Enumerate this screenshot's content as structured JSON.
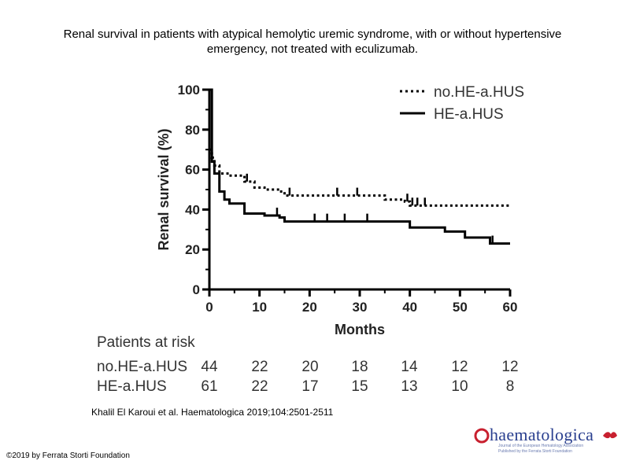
{
  "title_lines": [
    "Renal survival in patients with atypical hemolytic uremic syndrome, with or without hypertensive",
    "emergency, not treated with eculizumab."
  ],
  "chart_data": {
    "type": "line",
    "subtype": "kaplan-meier",
    "xlabel": "Months",
    "ylabel": "Renal survival (%)",
    "xlim": [
      0,
      60
    ],
    "ylim": [
      0,
      100
    ],
    "x_ticks": [
      "0",
      "10",
      "20",
      "30",
      "40",
      "50",
      "60"
    ],
    "y_ticks": [
      "0",
      "20",
      "40",
      "60",
      "80",
      "100"
    ],
    "legend_position": "top-right",
    "series": [
      {
        "name": "no.HE-a.HUS",
        "style": "dotted",
        "steps": [
          [
            0,
            70
          ],
          [
            0.5,
            66
          ],
          [
            1,
            62
          ],
          [
            2,
            58
          ],
          [
            4,
            57
          ],
          [
            7,
            54
          ],
          [
            9,
            51
          ],
          [
            11,
            50
          ],
          [
            14,
            49
          ],
          [
            15,
            47
          ],
          [
            35,
            45
          ],
          [
            39,
            44
          ],
          [
            40,
            42
          ],
          [
            60,
            42
          ]
        ],
        "censor_times": [
          7.5,
          16,
          25.5,
          29.5,
          39.5,
          40.5,
          41.5,
          43
        ]
      },
      {
        "name": "HE-a.HUS",
        "style": "solid",
        "steps": [
          [
            0,
            100
          ],
          [
            0.5,
            64
          ],
          [
            1,
            58
          ],
          [
            2,
            49
          ],
          [
            3,
            45
          ],
          [
            4,
            43
          ],
          [
            7,
            38
          ],
          [
            11,
            37
          ],
          [
            14,
            36
          ],
          [
            15,
            34
          ],
          [
            40,
            31
          ],
          [
            47,
            29
          ],
          [
            51,
            26
          ],
          [
            56,
            23
          ],
          [
            60,
            23
          ]
        ],
        "censor_times": [
          13.5,
          21,
          23.5,
          27,
          31.5,
          56.5
        ]
      }
    ]
  },
  "risk_table": {
    "heading": "Patients at risk",
    "rows": [
      {
        "label": "no.HE-a.HUS",
        "values": [
          "44",
          "22",
          "20",
          "18",
          "14",
          "12",
          "12"
        ]
      },
      {
        "label": "HE-a.HUS",
        "values": [
          "61",
          "22",
          "17",
          "15",
          "13",
          "10",
          "8"
        ]
      }
    ]
  },
  "citation": "Khalil El Karoui et al. Haematologica 2019;104:2501-2511",
  "copyright": "©2019 by Ferrata Storti Foundation",
  "logo": {
    "wordmark": "haematologica",
    "sub1": "Journal of the European Hematology Association",
    "sub2": "Published by the Ferrata Storti Foundation"
  },
  "colors": {
    "line": "#000000",
    "axis": "#000000",
    "text": "#333333",
    "logo": "#2a3f8f",
    "logo_accent": "#c8202f"
  }
}
